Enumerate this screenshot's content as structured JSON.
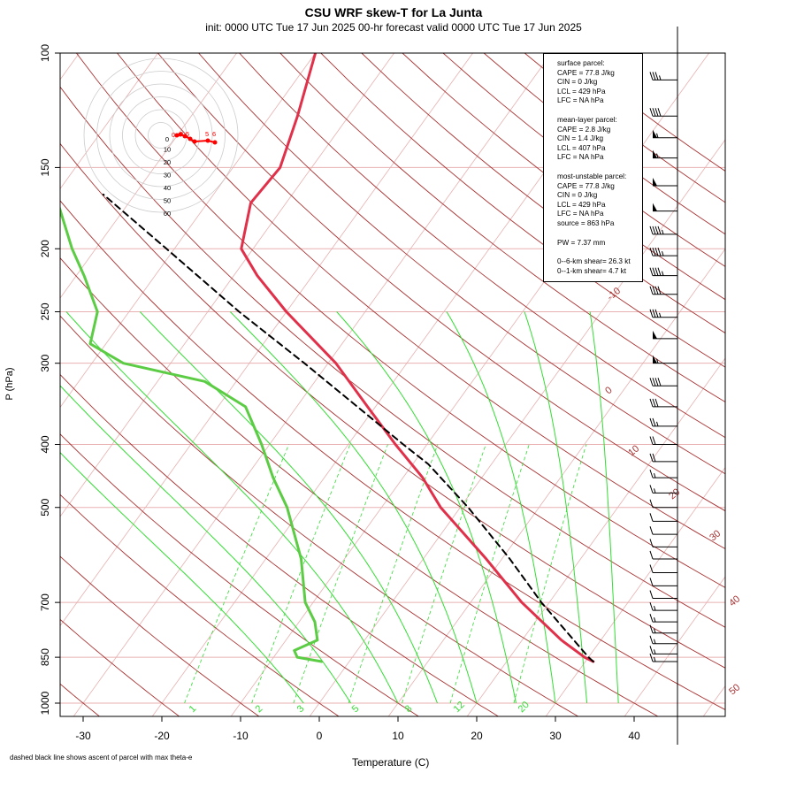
{
  "title": "CSU WRF skew-T for La Junta",
  "subtitle": "init: 0000 UTC Tue 17 Jun 2025     00-hr forecast valid 0000 UTC Tue 17 Jun 2025",
  "footnote": "dashed black line shows ascent of parcel with max theta-e",
  "stats": {
    "surface_header": "surface parcel:",
    "surface_cape": "CAPE = 77.8 J/kg",
    "surface_cin": "CIN = 0 J/kg",
    "surface_lcl": "LCL = 429 hPa",
    "surface_lfc": "LFC = NA hPa",
    "ml_header": "mean-layer parcel:",
    "ml_cape": "CAPE = 2.8 J/kg",
    "ml_cin": "CIN = 1.4 J/kg",
    "ml_lcl": "LCL = 407 hPa",
    "ml_lfc": "LFC = NA hPa",
    "mu_header": "most-unstable parcel:",
    "mu_cape": "CAPE = 77.8 J/kg",
    "mu_cin": "CIN = 0 J/kg",
    "mu_lcl": "LCL = 429 hPa",
    "mu_lfc": "LFC = NA hPa",
    "mu_source": "source = 863 hPa",
    "pw": "PW =  7.37 mm",
    "shear6": "0--6-km shear= 26.3 kt",
    "shear1": "0--1-km shear= 4.7 kt"
  },
  "colors": {
    "temperature": "#e0304a",
    "dewpoint": "#5ccc44",
    "parcel": "#000000",
    "dry_adiabat": "#a83232",
    "moist_adiabat": "#33dd33",
    "mixing_ratio": "#33dd33",
    "isobar": "#e8b0b0",
    "isotherm": "#e8b0b0",
    "hodograph": "#ff0000"
  },
  "chart_data": {
    "type": "skew-t",
    "xlabel": "Temperature (C)",
    "ylabel": "P (hPa)",
    "x_ticks": [
      -30,
      -20,
      -10,
      0,
      10,
      20,
      30,
      40
    ],
    "pressure_ticks": [
      100,
      150,
      200,
      250,
      300,
      400,
      500,
      700,
      850,
      1000
    ],
    "isotherm_labels": [
      -10,
      0,
      10,
      20,
      30,
      40,
      50
    ],
    "mixing_ratio_labels": [
      1,
      2,
      3,
      5,
      8,
      12,
      20
    ],
    "temperature_profile": [
      {
        "p": 863,
        "t": 31.0
      },
      {
        "p": 850,
        "t": 29.5
      },
      {
        "p": 800,
        "t": 25.0
      },
      {
        "p": 700,
        "t": 16.5
      },
      {
        "p": 600,
        "t": 8.0
      },
      {
        "p": 500,
        "t": -2.5
      },
      {
        "p": 450,
        "t": -7.5
      },
      {
        "p": 400,
        "t": -14.0
      },
      {
        "p": 350,
        "t": -21.0
      },
      {
        "p": 300,
        "t": -29.0
      },
      {
        "p": 250,
        "t": -40.0
      },
      {
        "p": 220,
        "t": -47.0
      },
      {
        "p": 200,
        "t": -51.5
      },
      {
        "p": 170,
        "t": -54.5
      },
      {
        "p": 150,
        "t": -54.0
      },
      {
        "p": 125,
        "t": -56.5
      },
      {
        "p": 100,
        "t": -60.0
      }
    ],
    "dewpoint_profile": [
      {
        "p": 863,
        "t": -3.5
      },
      {
        "p": 850,
        "t": -7.0
      },
      {
        "p": 830,
        "t": -8.0
      },
      {
        "p": 800,
        "t": -6.0
      },
      {
        "p": 750,
        "t": -8.0
      },
      {
        "p": 700,
        "t": -11.0
      },
      {
        "p": 600,
        "t": -15.5
      },
      {
        "p": 500,
        "t": -22.0
      },
      {
        "p": 450,
        "t": -26.5
      },
      {
        "p": 400,
        "t": -31.0
      },
      {
        "p": 350,
        "t": -36.5
      },
      {
        "p": 320,
        "t": -44.0
      },
      {
        "p": 300,
        "t": -56.0
      },
      {
        "p": 280,
        "t": -62.0
      },
      {
        "p": 250,
        "t": -64.0
      },
      {
        "p": 220,
        "t": -69.0
      },
      {
        "p": 200,
        "t": -73.0
      },
      {
        "p": 170,
        "t": -79.0
      }
    ],
    "parcel_profile": [
      {
        "p": 863,
        "t": 31.0
      },
      {
        "p": 850,
        "t": 30.0
      },
      {
        "p": 700,
        "t": 19.0
      },
      {
        "p": 600,
        "t": 11.0
      },
      {
        "p": 500,
        "t": 1.0
      },
      {
        "p": 429,
        "t": -8.0
      },
      {
        "p": 400,
        "t": -13.0
      },
      {
        "p": 300,
        "t": -33.0
      },
      {
        "p": 250,
        "t": -46.0
      },
      {
        "p": 200,
        "t": -61.0
      },
      {
        "p": 165,
        "t": -74.0
      }
    ],
    "hodograph": {
      "ring_labels": [
        0,
        10,
        20,
        30,
        40,
        50,
        60
      ],
      "point_labels": [
        "0",
        "0",
        "5",
        "5",
        "6"
      ]
    },
    "wind_barbs": {
      "pressures": [
        110,
        125,
        135,
        145,
        160,
        175,
        190,
        205,
        220,
        235,
        255,
        275,
        300,
        325,
        350,
        375,
        400,
        425,
        450,
        475,
        500,
        525,
        550,
        575,
        600,
        630,
        660,
        690,
        720,
        750,
        780,
        810,
        840,
        863
      ],
      "speeds_kt": [
        35,
        40,
        55,
        55,
        50,
        50,
        45,
        45,
        45,
        40,
        35,
        50,
        55,
        40,
        30,
        25,
        20,
        20,
        15,
        15,
        10,
        10,
        10,
        10,
        10,
        10,
        10,
        10,
        15,
        15,
        15,
        15,
        15,
        15
      ]
    }
  }
}
